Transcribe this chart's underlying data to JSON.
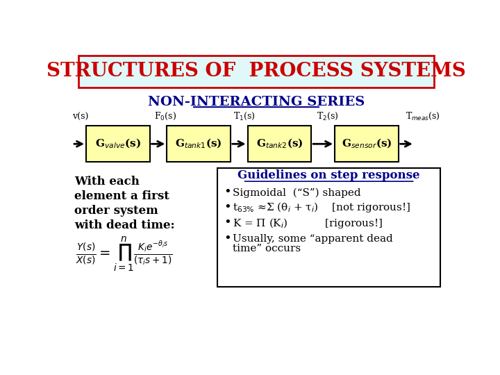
{
  "title": "STRUCTURES OF  PROCESS SYSTEMS",
  "subtitle": "NON-INTERACTING SERIES",
  "background_color": "#ffffff",
  "title_bg_color": "#e0f8f8",
  "title_border_color": "#cc0000",
  "title_text_color": "#cc0000",
  "subtitle_color": "#00008B",
  "box_fill_color": "#ffffaa",
  "box_edge_color": "#000000",
  "arrow_color": "#000000",
  "blocks": [
    "G$_{valve}$(s)",
    "G$_{tank1}$(s)",
    "G$_{tank2}$(s)",
    "G$_{sensor}$(s)"
  ],
  "labels_above_left": [
    "v(s)",
    "F$_0$(s)",
    "T$_1$(s)",
    "T$_2$(s)",
    "T$_{meas}$(s)"
  ],
  "left_text_lines": [
    "With each",
    "element a first",
    "order system",
    "with dead time:"
  ],
  "right_box_title": "Guidelines on step response",
  "bullet1": "Sigmoidal  (“S”) shaped",
  "bullet2": "t$_{63\\%}$ ≈Σ (θ$_i$ + τ$_i$)    [not rigorous!]",
  "bullet3": "K = Π (K$_i$)           [rigorous!]",
  "bullet4a": "Usually, some “apparent dead",
  "bullet4b": "time” occurs",
  "formula": "$\\frac{Y(s)}{X(s)} = \\prod_{i=1}^{n} \\frac{K_i e^{-\\theta_i s}}{(\\tau_i s + 1)}$"
}
